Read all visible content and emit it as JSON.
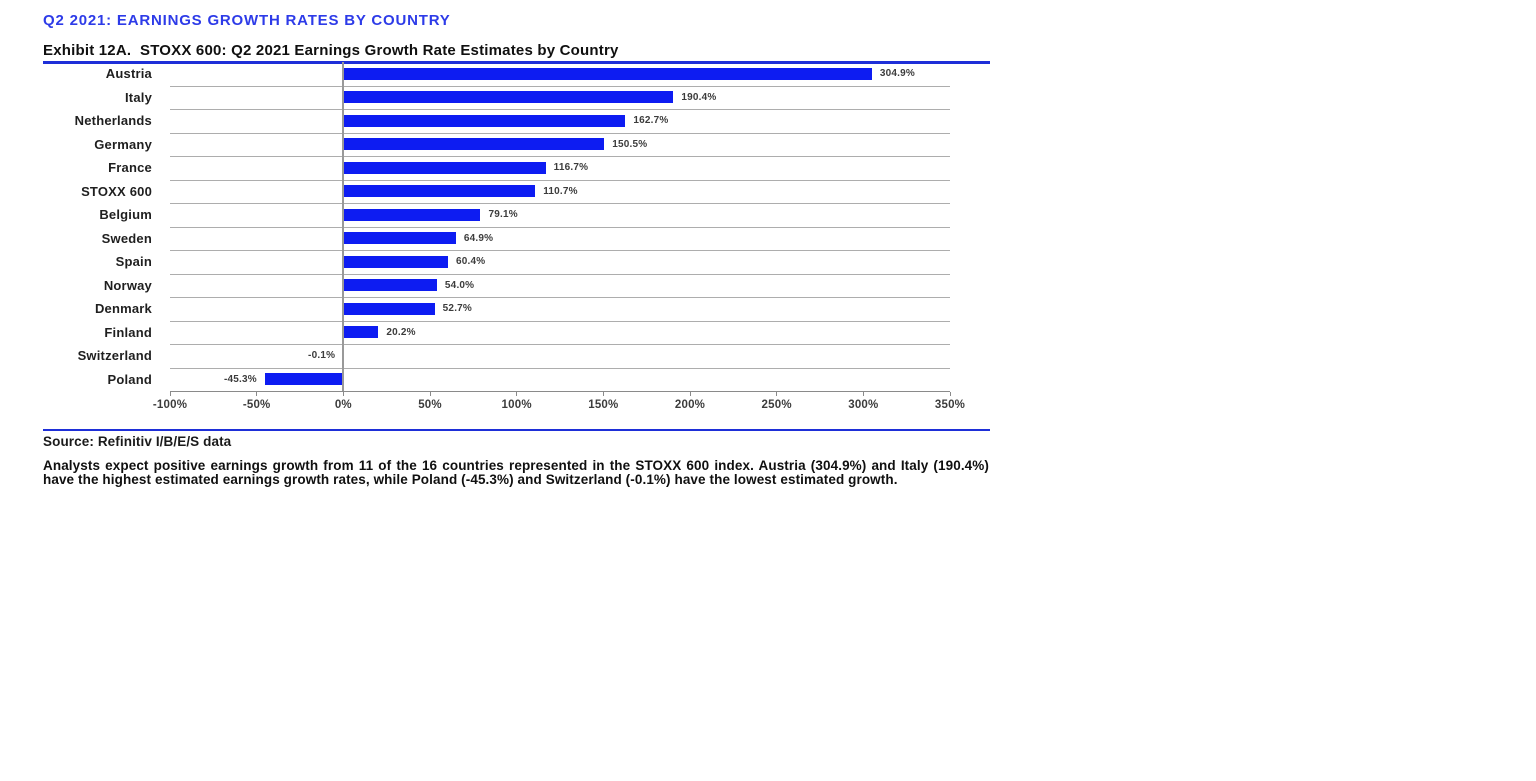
{
  "page": {
    "title": "Q2 2021: EARNINGS GROWTH RATES BY COUNTRY",
    "exhibit_title": "Exhibit 12A.  STOXX 600: Q2 2021 Earnings Growth Rate Estimates by Country",
    "source": "Source: Refinitiv I/B/E/S data",
    "commentary": "Analysts expect positive earnings growth from 11 of the 16 countries represented in the STOXX 600 index. Austria (304.9%) and Italy (190.4%) have the highest estimated earnings growth rates, while Poland (-45.3%) and Switzerland (-0.1%) have the lowest estimated growth."
  },
  "colors": {
    "bar": "#0d1cf2",
    "title": "#2d3be8",
    "rule": "#1e2fd8",
    "grid": "#adadad"
  },
  "chart_data": {
    "type": "bar",
    "orientation": "horizontal",
    "title": "STOXX 600: Q2 2021 Earnings Growth Rate Estimates by Country",
    "categories": [
      "Austria",
      "Italy",
      "Netherlands",
      "Germany",
      "France",
      "STOXX 600",
      "Belgium",
      "Sweden",
      "Spain",
      "Norway",
      "Denmark",
      "Finland",
      "Switzerland",
      "Poland"
    ],
    "values": [
      304.9,
      190.4,
      162.7,
      150.5,
      116.7,
      110.7,
      79.1,
      64.9,
      60.4,
      54.0,
      52.7,
      20.2,
      -0.1,
      -45.3
    ],
    "labels": [
      "304.9%",
      "190.4%",
      "162.7%",
      "150.5%",
      "116.7%",
      "110.7%",
      "79.1%",
      "64.9%",
      "60.4%",
      "54.0%",
      "52.7%",
      "20.2%",
      "-0.1%",
      "-45.3%"
    ],
    "xlim": [
      -100,
      350
    ],
    "x_tick_values": [
      -100,
      -50,
      0,
      50,
      100,
      150,
      200,
      250,
      300,
      350
    ],
    "x_ticks": [
      "-100%",
      "-50%",
      "0%",
      "50%",
      "100%",
      "150%",
      "200%",
      "250%",
      "300%",
      "350%"
    ],
    "xlabel": "",
    "ylabel": "",
    "grid": "horizontal-row-separators",
    "legend": "none",
    "value_label_position": "outside-end"
  }
}
